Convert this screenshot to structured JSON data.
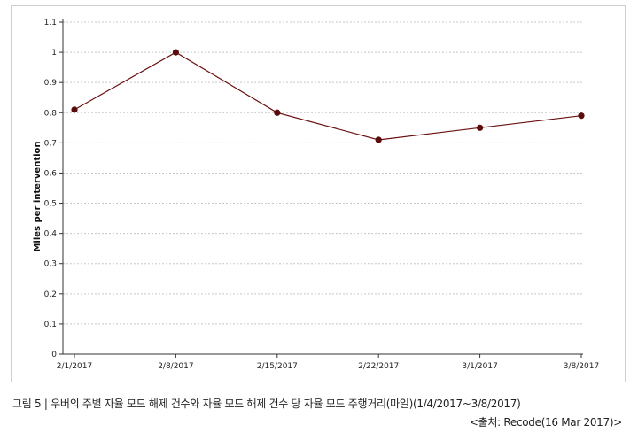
{
  "chart_data": {
    "type": "line",
    "x": [
      "2/1/2017",
      "2/8/2017",
      "2/15/2017",
      "2/22/2017",
      "3/1/2017",
      "3/8/2017"
    ],
    "series": [
      {
        "values": [
          0.81,
          1.0,
          0.8,
          0.71,
          0.75,
          0.79
        ]
      }
    ],
    "ylabel": "Miles per intervention",
    "xlabel": "",
    "ylim": [
      0,
      1.1
    ],
    "yticks": [
      "0",
      "0.1",
      "0.2",
      "0.3",
      "0.4",
      "0.5",
      "0.6",
      "0.7",
      "0.8",
      "0.9",
      "1",
      "1.1"
    ],
    "grid": "horizontal dotted",
    "line_color": "#6b1010",
    "grid_color": "#c8c8c8"
  },
  "caption": "그림 5 | 우버의 주별 자율 모드 해제 건수와 자율 모드 해제 건수 당 자율 모드 주행거리(마일)(1/4/2017~3/8/2017)",
  "source": "<출처: Recode(16 Mar 2017)>"
}
